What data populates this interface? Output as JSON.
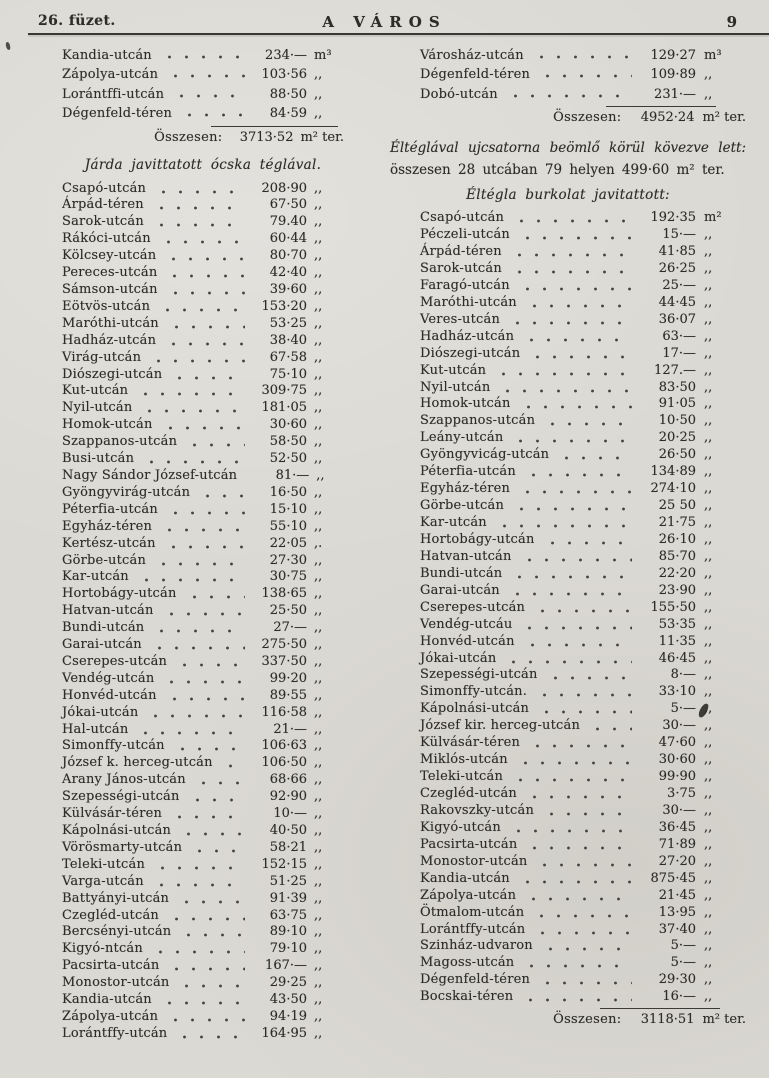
{
  "header": {
    "booklet": "26. füzet.",
    "title": "A VÁROS",
    "page_number": "9"
  },
  "left_column": {
    "intro_items": [
      {
        "name": "Kandia-utcán",
        "value": "234·—",
        "unit": "m³"
      },
      {
        "name": "Zápolya-utcán",
        "value": "103·56",
        "unit": ",,"
      },
      {
        "name": "Lorántffi-utcán",
        "value": "88·50",
        "unit": ",,"
      },
      {
        "name": "Dégenfeld-téren",
        "value": "84·59",
        "unit": ",,"
      }
    ],
    "intro_total": {
      "label": "Összesen:",
      "value": "3713·52",
      "unit": "m² ter."
    },
    "section_heading": "Járda javittatott ócska téglával.",
    "items": [
      {
        "name": "Csapó-utcán",
        "value": "208·90",
        "unit": ",,"
      },
      {
        "name": "Árpád-téren",
        "value": "67·50",
        "unit": ",,"
      },
      {
        "name": "Sarok-utcán",
        "value": "79.40",
        "unit": ",,"
      },
      {
        "name": "Rákóci-utcán",
        "value": "60·44",
        "unit": ",,"
      },
      {
        "name": "Kölcsey-utcán",
        "value": "80·70",
        "unit": ",,"
      },
      {
        "name": "Pereces-utcán",
        "value": "42·40",
        "unit": ",,"
      },
      {
        "name": "Sámson-utcán",
        "value": "39·60",
        "unit": ",,"
      },
      {
        "name": "Eötvös-utcán",
        "value": "153·20",
        "unit": ",,"
      },
      {
        "name": "Maróthi-utcán",
        "value": "53·25",
        "unit": ",,"
      },
      {
        "name": "Hadház-utcán",
        "value": "38·40",
        "unit": ",,"
      },
      {
        "name": "Virág-utcán",
        "value": "67·58",
        "unit": ",,"
      },
      {
        "name": "Diószegi-utcán",
        "value": "75·10",
        "unit": ",,"
      },
      {
        "name": "Kut-utcán",
        "value": "309·75",
        "unit": ",,"
      },
      {
        "name": "Nyil-utcán",
        "value": "181·05",
        "unit": ",,"
      },
      {
        "name": "Homok-utcán",
        "value": "30·60",
        "unit": ",,"
      },
      {
        "name": "Szappanos-utcán",
        "value": "58·50",
        "unit": ",,"
      },
      {
        "name": "Busi-utcán",
        "value": "52·50",
        "unit": ",,"
      },
      {
        "name": "Nagy Sándor József-utcán",
        "value": "81·—",
        "unit": ",,"
      },
      {
        "name": "Gyöngyvirág-utcán",
        "value": "16·50",
        "unit": ",,"
      },
      {
        "name": "Péterfia-utcán",
        "value": "15·10",
        "unit": ",,"
      },
      {
        "name": "Egyház-téren",
        "value": "55·10",
        "unit": ",,"
      },
      {
        "name": "Kertész-utcán",
        "value": "22·05",
        "unit": ",."
      },
      {
        "name": "Görbe-utcán",
        "value": "27·30",
        "unit": ",,"
      },
      {
        "name": "Kar-utcán",
        "value": "30·75",
        "unit": ",,"
      },
      {
        "name": "Hortobágy-utcán",
        "value": "138·65",
        "unit": ",,"
      },
      {
        "name": "Hatvan-utcán",
        "value": "25·50",
        "unit": ",,"
      },
      {
        "name": "Bundi-utcán",
        "value": "27·—",
        "unit": ",,"
      },
      {
        "name": "Garai-utcán",
        "value": "275·50",
        "unit": ",,"
      },
      {
        "name": "Cserepes-utcán",
        "value": "337·50",
        "unit": ",,"
      },
      {
        "name": "Vendég-utcán",
        "value": "99·20",
        "unit": ",,"
      },
      {
        "name": "Honvéd-utcán",
        "value": "89·55",
        "unit": ",,"
      },
      {
        "name": "Jókai-utcán",
        "value": "116·58",
        "unit": ",,"
      },
      {
        "name": "Hal-utcán",
        "value": "21·—",
        "unit": ",,"
      },
      {
        "name": "Simonffy-utcán",
        "value": "106·63",
        "unit": ",,"
      },
      {
        "name": "József k. herceg-utcán",
        "value": "106·50",
        "unit": ",,"
      },
      {
        "name": "Arany János-utcán",
        "value": "68·66",
        "unit": ",,"
      },
      {
        "name": "Szepességi-utcán",
        "value": "92·90",
        "unit": ",,"
      },
      {
        "name": "Külvásár-téren",
        "value": "10·—",
        "unit": ",,"
      },
      {
        "name": "Kápolnási-utcán",
        "value": "40·50",
        "unit": ",,"
      },
      {
        "name": "Vörösmarty-utcán",
        "value": "58·21",
        "unit": ",,"
      },
      {
        "name": "Teleki-utcán",
        "value": "152·15",
        "unit": ",,"
      },
      {
        "name": "Varga-utcán",
        "value": "51·25",
        "unit": ",,"
      },
      {
        "name": "Battyányi-utcán",
        "value": "91·39",
        "unit": ",,"
      },
      {
        "name": "Czegléd-utcán",
        "value": "63·75",
        "unit": ",,"
      },
      {
        "name": "Bercsényi-utcán",
        "value": "89·10",
        "unit": ",,"
      },
      {
        "name": "Kigyó-ntcán",
        "value": "79·10",
        "unit": ",,"
      },
      {
        "name": "Pacsirta-utcán",
        "value": "167·—",
        "unit": ",,"
      },
      {
        "name": "Monostor-utcán",
        "value": "29·25",
        "unit": ",,"
      },
      {
        "name": "Kandia-utcán",
        "value": "43·50",
        "unit": ",,"
      },
      {
        "name": "Zápolya-utcán",
        "value": "94·19",
        "unit": ",,"
      },
      {
        "name": "Lorántffy-utcán",
        "value": "164·95",
        "unit": ",,"
      }
    ]
  },
  "right_column": {
    "intro_items": [
      {
        "name": "Városház-utcán",
        "value": "129·27",
        "unit": "m³"
      },
      {
        "name": "Dégenfeld-téren",
        "value": "109·89",
        "unit": ",,"
      },
      {
        "name": "Dobó-utcán",
        "value": "231·—",
        "unit": ",,"
      }
    ],
    "intro_total": {
      "label": "Összesen:",
      "value": "4952·24",
      "unit": "m² ter."
    },
    "note_line1": "Éltéglával ujcsatorna beömlő körül kövezve lett:",
    "note_line2": "összesen 28 utcában 79 helyen 499·60 m² ter.",
    "section_heading": "Éltégla burkolat javitattott:",
    "items": [
      {
        "name": "Csapó-utcán",
        "value": "192·35",
        "unit": "m²"
      },
      {
        "name": "Péczeli-utcán",
        "value": "15·—",
        "unit": ",,"
      },
      {
        "name": "Árpád-téren",
        "value": "41·85",
        "unit": ",,"
      },
      {
        "name": "Sarok-utcán",
        "value": "26·25",
        "unit": ",,"
      },
      {
        "name": "Faragó-utcán",
        "value": "25·—",
        "unit": ",,"
      },
      {
        "name": "Maróthi-utcán",
        "value": "44·45",
        "unit": ",,"
      },
      {
        "name": "Veres-utcán",
        "value": "36·07",
        "unit": ",,"
      },
      {
        "name": "Hadház-utcán",
        "value": "63·—",
        "unit": ",,"
      },
      {
        "name": "Diószegi-utcán",
        "value": "17·—",
        "unit": ",,"
      },
      {
        "name": "Kut-utcán",
        "value": "127.—",
        "unit": ",,"
      },
      {
        "name": "Nyil-utcán",
        "value": "83·50",
        "unit": ",,"
      },
      {
        "name": "Homok-utcán",
        "value": "91·05",
        "unit": ",,"
      },
      {
        "name": "Szappanos-utcán",
        "value": "10·50",
        "unit": ",,"
      },
      {
        "name": "Leány-utcán",
        "value": "20·25",
        "unit": ",,"
      },
      {
        "name": "Gyöngyvicág-utcán",
        "value": "26·50",
        "unit": ",,"
      },
      {
        "name": "Péterfia-utcán",
        "value": "134·89",
        "unit": ",,"
      },
      {
        "name": "Egyház-téren",
        "value": "274·10",
        "unit": ",,"
      },
      {
        "name": "Görbe-utcán",
        "value": "25 50",
        "unit": ",,"
      },
      {
        "name": "Kar-utcán",
        "value": "21·75",
        "unit": ",,"
      },
      {
        "name": "Hortobágy-utcán",
        "value": "26·10",
        "unit": ",,"
      },
      {
        "name": "Hatvan-utcán",
        "value": "85·70",
        "unit": ",,"
      },
      {
        "name": "Bundi-utcán",
        "value": "22·20",
        "unit": ",,"
      },
      {
        "name": "Garai-utcán",
        "value": "23·90",
        "unit": ",,"
      },
      {
        "name": "Cserepes-utcán",
        "value": "155·50",
        "unit": ",,"
      },
      {
        "name": "Vendég-utcáu",
        "value": "53·35",
        "unit": ",,"
      },
      {
        "name": "Honvéd-utcán",
        "value": "11·35",
        "unit": ",,"
      },
      {
        "name": "Jókai-utcán",
        "value": "46·45",
        "unit": ",,"
      },
      {
        "name": "Szepességi-utcán",
        "value": "8·—",
        "unit": ",,"
      },
      {
        "name": "Simonffy-utcán.",
        "value": "33·10",
        "unit": ",,"
      },
      {
        "name": "Kápolnási-utcán",
        "value": "5·—",
        "unit": ",,"
      },
      {
        "name": "József kir. herceg-utcán",
        "value": "30·—",
        "unit": ",,"
      },
      {
        "name": "Külvásár-téren",
        "value": "47·60",
        "unit": ",,"
      },
      {
        "name": "Miklós-utcán",
        "value": "30·60",
        "unit": ",,"
      },
      {
        "name": "Teleki-utcán",
        "value": "99·90",
        "unit": ",,"
      },
      {
        "name": "Czegléd-utcán",
        "value": "3·75",
        "unit": ",,"
      },
      {
        "name": "Rakovszky-utcán",
        "value": "30·—",
        "unit": ",,"
      },
      {
        "name": "Kigyó-utcán",
        "value": "36·45",
        "unit": ",,"
      },
      {
        "name": "Pacsirta-utcán",
        "value": "71·89",
        "unit": ",,"
      },
      {
        "name": "Monostor-utcán",
        "value": "27·20",
        "unit": ",,"
      },
      {
        "name": "Kandia-utcán",
        "value": "875·45",
        "unit": ",,"
      },
      {
        "name": "Zápolya-utcán",
        "value": "21·45",
        "unit": ",,"
      },
      {
        "name": "Ötmalom-utcán",
        "value": "13·95",
        "unit": ",,"
      },
      {
        "name": "Lorántffy-utcán",
        "value": "37·40",
        "unit": ",,"
      },
      {
        "name": "Szinház-udvaron",
        "value": "5·—",
        "unit": ",,"
      },
      {
        "name": "Magoss-utcán",
        "value": "5·—",
        "unit": ",,"
      },
      {
        "name": "Dégenfeld-téren",
        "value": "29·30",
        "unit": ",,"
      },
      {
        "name": "Bocskai-téren",
        "value": "16·—",
        "unit": ",,"
      }
    ],
    "total": {
      "label": "Összesen:",
      "value": "3118·51",
      "unit": "m² ter."
    }
  }
}
